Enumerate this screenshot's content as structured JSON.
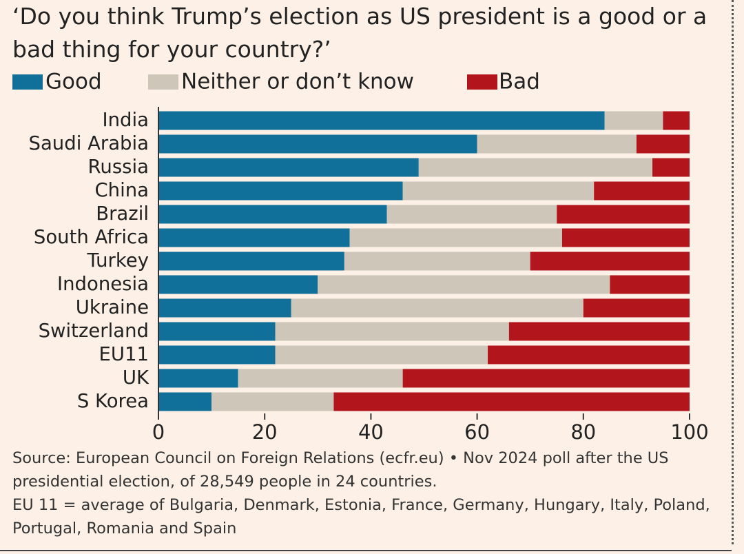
{
  "chart_data": {
    "type": "stacked-bar-horizontal",
    "title": "‘Do you think Trump’s election as US president is a good or a bad thing for your country?’",
    "categories": [
      "India",
      "Saudi Arabia",
      "Russia",
      "China",
      "Brazil",
      "South Africa",
      "Turkey",
      "Indonesia",
      "Ukraine",
      "Switzerland",
      "EU11",
      "UK",
      "S Korea"
    ],
    "series": [
      {
        "name": "Good",
        "color": "#10709a",
        "values": [
          84,
          60,
          49,
          46,
          43,
          36,
          35,
          30,
          25,
          22,
          22,
          15,
          10
        ]
      },
      {
        "name": "Neither or don’t know",
        "color": "#cdc6b9",
        "values": [
          11,
          30,
          44,
          36,
          32,
          40,
          35,
          55,
          55,
          44,
          40,
          31,
          23
        ]
      },
      {
        "name": "Bad",
        "color": "#b2151c",
        "values": [
          5,
          10,
          7,
          18,
          25,
          24,
          30,
          15,
          20,
          34,
          38,
          54,
          67
        ]
      }
    ],
    "xlim": [
      0,
      100
    ],
    "xticks": [
      0,
      20,
      40,
      60,
      80,
      100
    ],
    "source": "Source: European Council on Foreign Relations (ecfr.eu) • Nov 2024 poll after the US presidential election, of 28,549 people in 24 countries.",
    "note": "EU 11 = average of Bulgaria, Denmark, Estonia, France, Germany, Hungary, Italy, Poland, Portugal, Romania and Spain"
  }
}
